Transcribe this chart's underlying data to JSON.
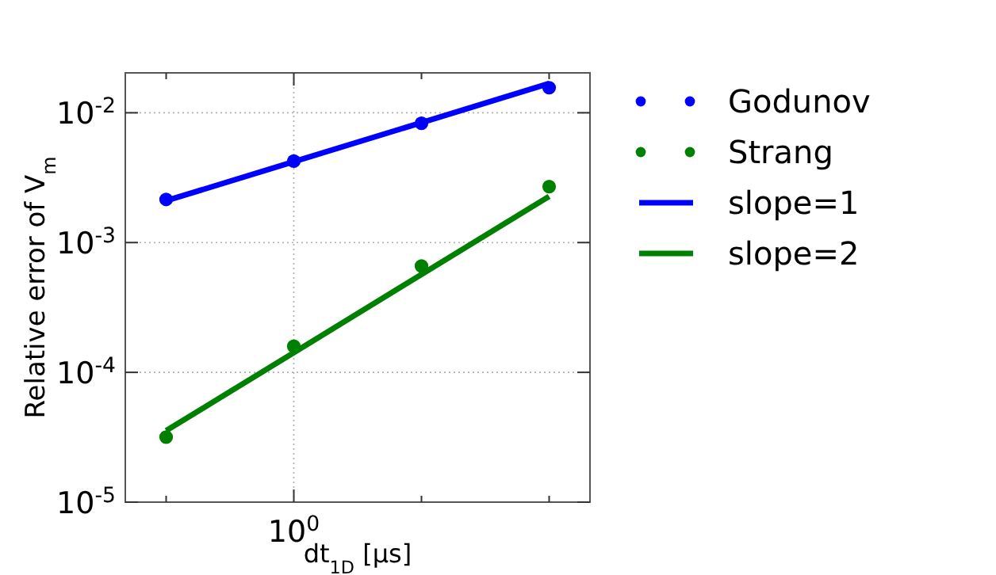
{
  "chart_data": {
    "type": "scatter",
    "xlabel": "dt$_{1D}$ [μs]",
    "ylabel": "Relative error of V$_{m}$",
    "log": "y",
    "grid": true,
    "legend": "right",
    "categories": [
      null,
      "10$^{0}$",
      null,
      null
    ],
    "ylim": [
      1e-05,
      0.0203
    ],
    "yticks": [
      {
        "value": 1e-05,
        "label": "10$^{-5}$"
      },
      {
        "value": 0.0001,
        "label": "10$^{-4}$"
      },
      {
        "value": 0.001,
        "label": "10$^{-3}$"
      },
      {
        "value": 0.01,
        "label": "10$^{-2}$"
      }
    ],
    "series": [
      {
        "name": "Godunov",
        "marker": "circle",
        "color": "#0000ff",
        "values": [
          0.00215,
          0.00424,
          0.0083,
          0.0156
        ]
      },
      {
        "name": "Strang",
        "marker": "circle",
        "color": "#008000",
        "values": [
          3.17e-05,
          0.000159,
          0.00066,
          0.0027
        ]
      },
      {
        "name": "slope=1",
        "type": "line",
        "marker": "none",
        "line_style": "solid",
        "color": "#0000ff",
        "values": [
          0.0021,
          0.0042,
          0.0084,
          0.0168
        ]
      },
      {
        "name": "slope=2",
        "type": "line",
        "marker": "none",
        "line_style": "solid",
        "color": "#008000",
        "values": [
          3.55e-05,
          0.000142,
          0.000568,
          0.00227
        ]
      }
    ]
  }
}
